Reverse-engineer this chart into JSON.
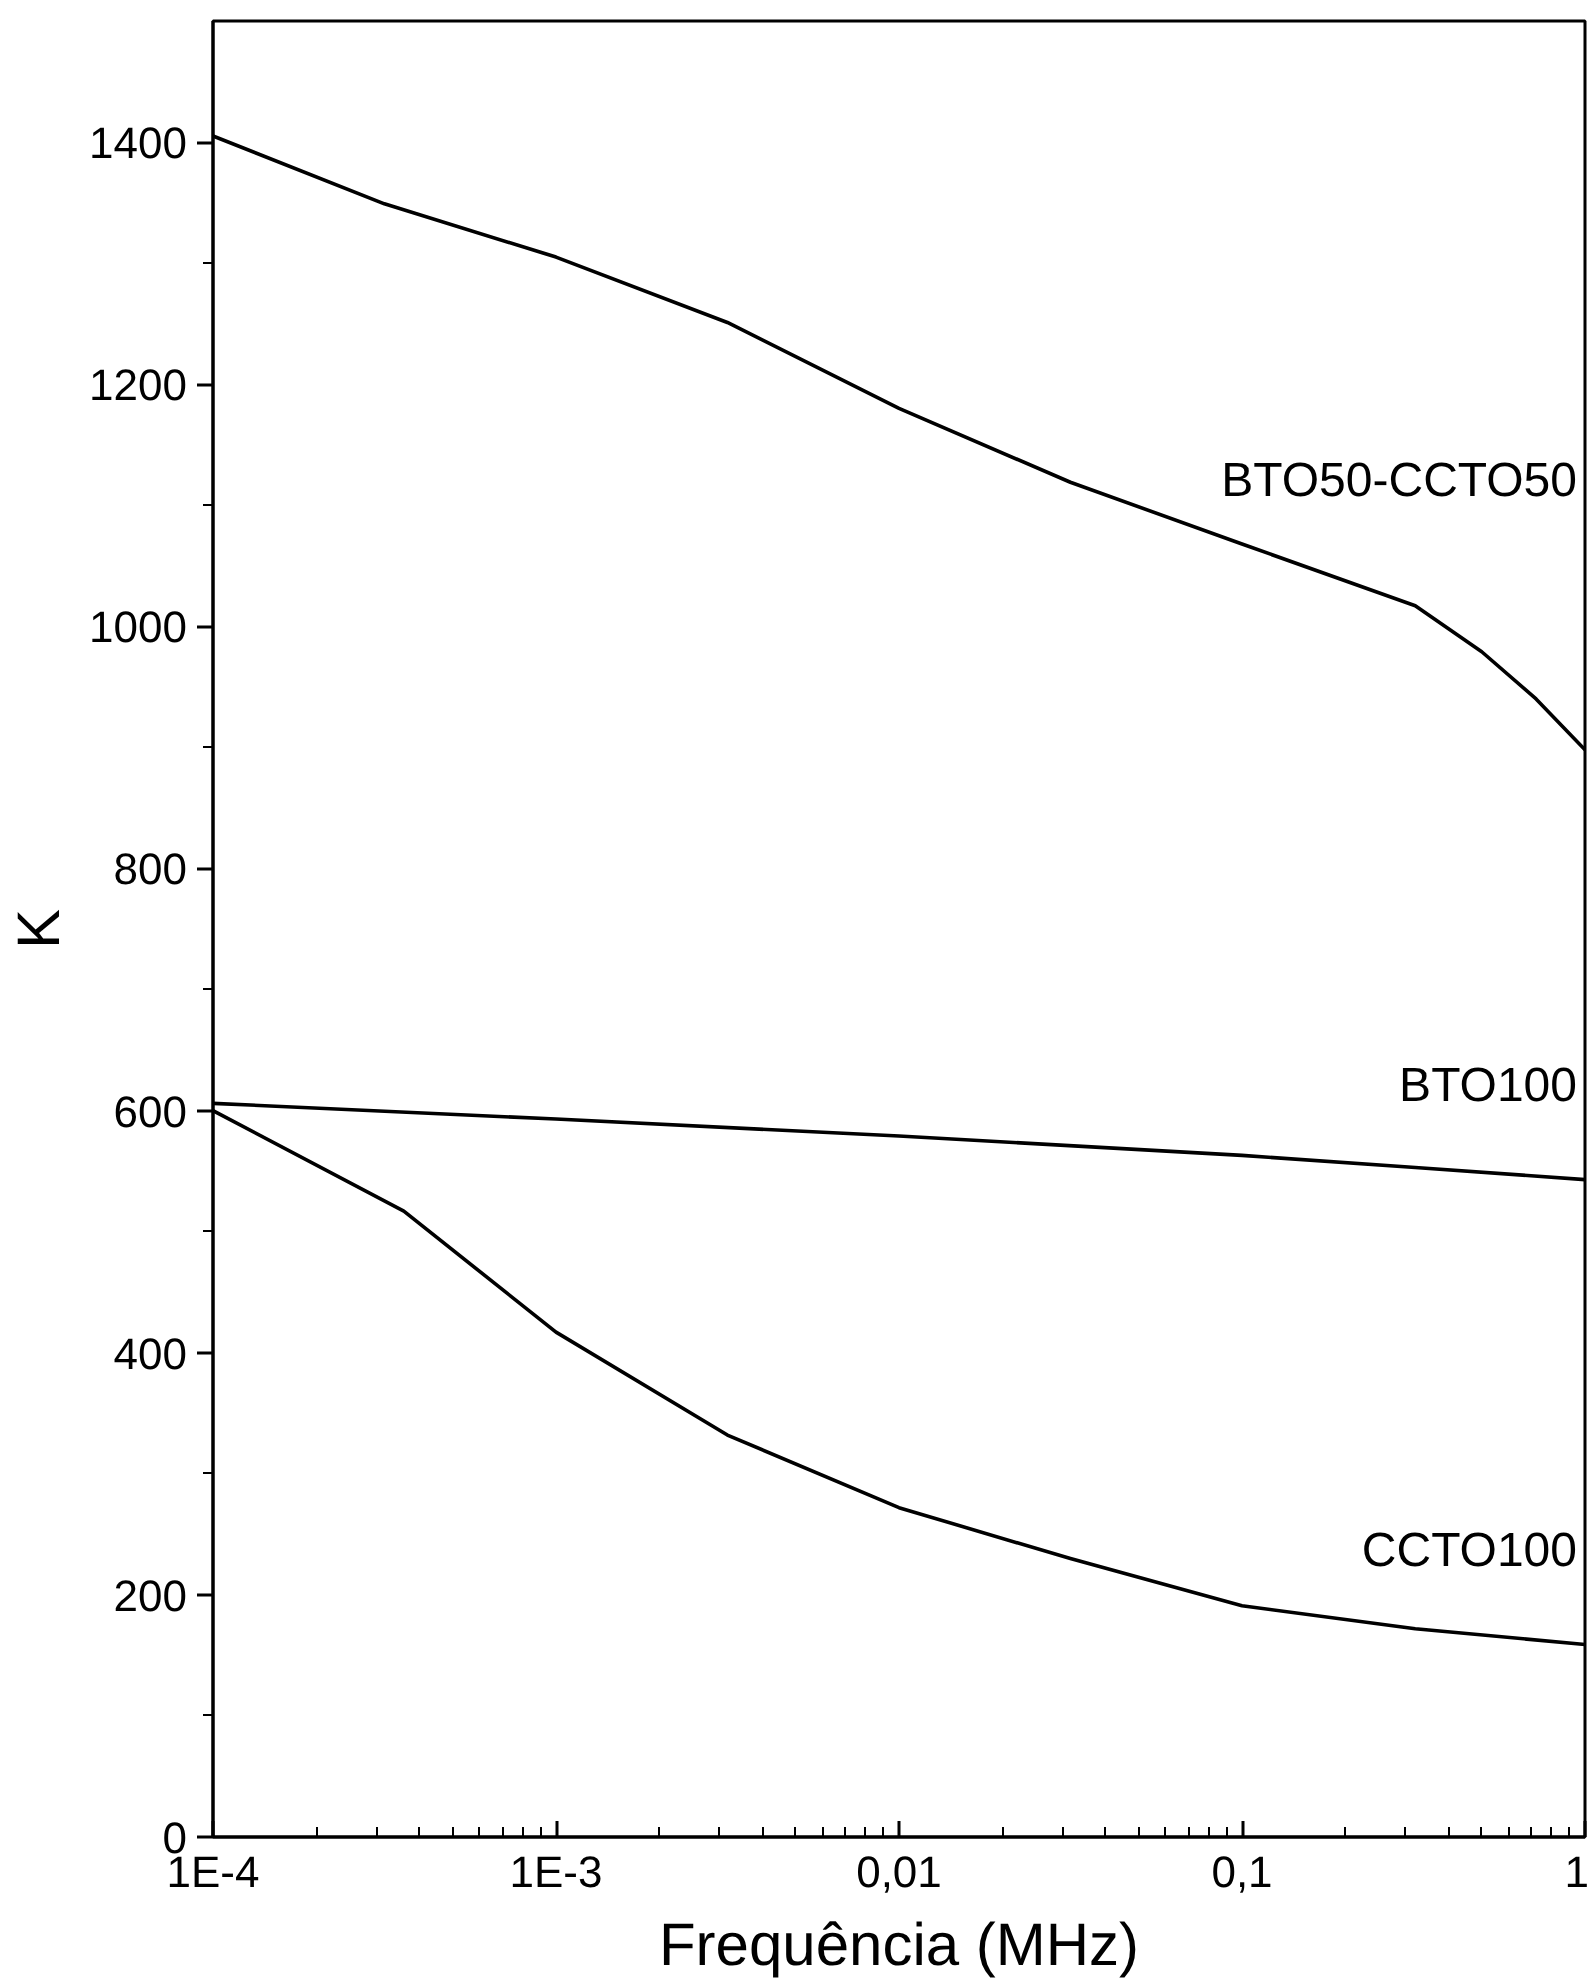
{
  "chart_data": {
    "type": "line",
    "xlabel": "Frequência (MHz)",
    "ylabel": "K",
    "log": "x",
    "xlim": [
      0.0001,
      1
    ],
    "ylim": [
      0,
      1500
    ],
    "xticks": [
      {
        "value": 0.0001,
        "label": "1E-4"
      },
      {
        "value": 0.001,
        "label": "1E-3"
      },
      {
        "value": 0.01,
        "label": "0,01"
      },
      {
        "value": 0.1,
        "label": "0,1"
      },
      {
        "value": 1,
        "label": "1"
      }
    ],
    "yticks": [
      0,
      200,
      400,
      600,
      800,
      1000,
      1200,
      1400
    ],
    "grid": false,
    "marker": "none",
    "line_style": "solid",
    "series": [
      {
        "name": "BTO50-CCTO50",
        "color": "#000000",
        "x": [
          0.0001,
          0.000316,
          0.001,
          0.00316,
          0.01,
          0.0316,
          0.1,
          0.32,
          0.5,
          0.72,
          1
        ],
        "values": [
          1405,
          1349,
          1305,
          1251,
          1180,
          1119,
          1068,
          1017,
          979,
          940,
          898
        ]
      },
      {
        "name": "BTO100",
        "color": "#000000",
        "x": [
          0.0001,
          0.001,
          0.01,
          0.1,
          0.32,
          1
        ],
        "values": [
          606,
          593,
          579,
          563,
          553,
          543
        ]
      },
      {
        "name": "CCTO100",
        "color": "#000000",
        "x": [
          0.0001,
          0.00036,
          0.001,
          0.00316,
          0.01,
          0.0316,
          0.1,
          0.32,
          1
        ],
        "values": [
          600,
          517,
          417,
          332,
          272,
          230,
          191,
          172,
          159
        ]
      }
    ]
  }
}
